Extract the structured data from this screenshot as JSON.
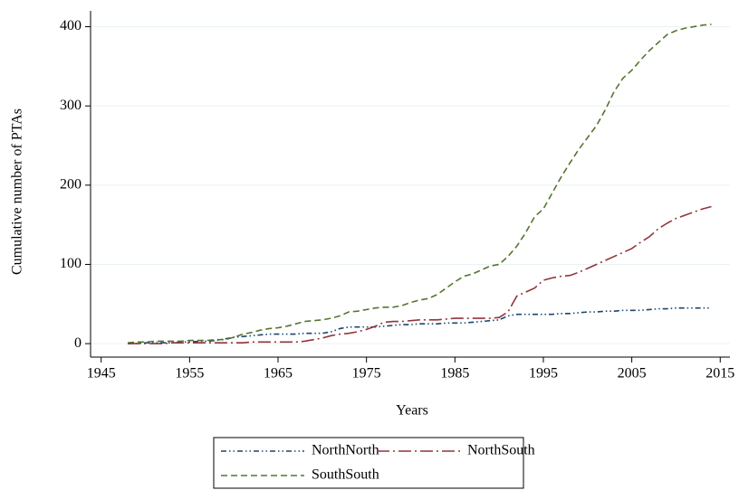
{
  "chart_data": {
    "type": "line",
    "xlabel": "Years",
    "ylabel": "Cumulative number of PTAs",
    "x": [
      1948,
      1949,
      1950,
      1951,
      1952,
      1953,
      1954,
      1955,
      1956,
      1957,
      1958,
      1959,
      1960,
      1961,
      1962,
      1963,
      1964,
      1965,
      1966,
      1967,
      1968,
      1969,
      1970,
      1971,
      1972,
      1973,
      1974,
      1975,
      1976,
      1977,
      1978,
      1979,
      1980,
      1981,
      1982,
      1983,
      1984,
      1985,
      1986,
      1987,
      1988,
      1989,
      1990,
      1991,
      1992,
      1993,
      1994,
      1995,
      1996,
      1997,
      1998,
      1999,
      2000,
      2001,
      2002,
      2003,
      2004,
      2005,
      2006,
      2007,
      2008,
      2009,
      2010,
      2011,
      2012,
      2013,
      2014
    ],
    "series": [
      {
        "name": "NorthNorth",
        "color": "#1a476f",
        "values": [
          0,
          0,
          1,
          1,
          1,
          1,
          2,
          2,
          3,
          3,
          4,
          6,
          8,
          9,
          10,
          11,
          12,
          12,
          12,
          12,
          13,
          13,
          13,
          15,
          19,
          21,
          21,
          21,
          21,
          22,
          23,
          24,
          24,
          25,
          25,
          25,
          26,
          26,
          26,
          27,
          28,
          29,
          30,
          35,
          37,
          37,
          37,
          37,
          37,
          38,
          38,
          39,
          40,
          40,
          41,
          41,
          42,
          42,
          42,
          43,
          44,
          44,
          45,
          45,
          45,
          45,
          45
        ]
      },
      {
        "name": "NorthSouth",
        "color": "#90353b",
        "values": [
          0,
          0,
          0,
          0,
          0,
          1,
          1,
          1,
          1,
          1,
          1,
          1,
          1,
          1,
          2,
          2,
          2,
          2,
          2,
          2,
          3,
          5,
          7,
          10,
          12,
          13,
          15,
          18,
          22,
          27,
          28,
          28,
          29,
          30,
          30,
          30,
          31,
          32,
          32,
          32,
          32,
          32,
          33,
          40,
          60,
          65,
          70,
          80,
          83,
          85,
          86,
          90,
          95,
          100,
          105,
          110,
          115,
          120,
          128,
          135,
          145,
          152,
          158,
          162,
          166,
          170,
          173
        ]
      },
      {
        "name": "SouthSouth",
        "color": "#55752f",
        "values": [
          1,
          2,
          2,
          3,
          3,
          3,
          3,
          4,
          4,
          4,
          5,
          5,
          8,
          12,
          14,
          17,
          19,
          20,
          22,
          25,
          28,
          29,
          30,
          32,
          35,
          40,
          41,
          43,
          45,
          46,
          46,
          48,
          52,
          55,
          57,
          62,
          70,
          78,
          85,
          88,
          93,
          98,
          100,
          110,
          123,
          140,
          160,
          170,
          190,
          210,
          228,
          245,
          260,
          275,
          295,
          318,
          335,
          345,
          358,
          370,
          380,
          390,
          395,
          398,
          400,
          402,
          403
        ]
      }
    ],
    "xlim": [
      1943.8,
      2016.1
    ],
    "xticks": [
      1945,
      1955,
      1965,
      1975,
      1985,
      1995,
      2005,
      2015
    ],
    "ylim": [
      -17,
      420
    ],
    "yticks": [
      0,
      100,
      200,
      300,
      400
    ],
    "grid": true,
    "legend": "bottom"
  }
}
